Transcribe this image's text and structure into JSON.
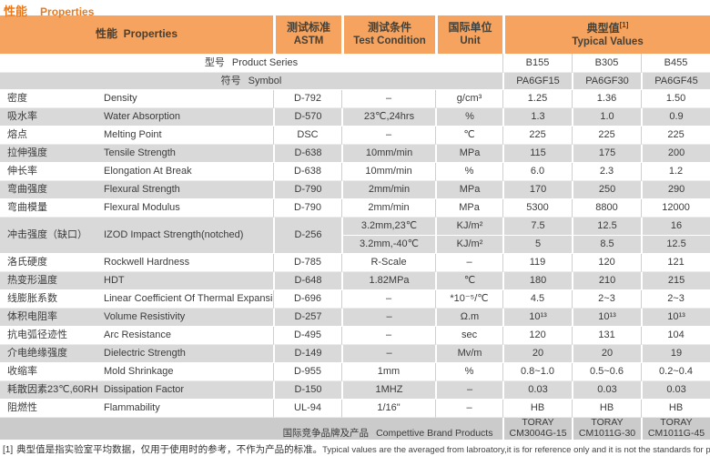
{
  "page": {
    "title_cn": "性能",
    "title_en": "Properties"
  },
  "table": {
    "header": {
      "properties_cn": "性能",
      "properties_en": "Properties",
      "astm_cn": "测试标准",
      "astm_en": "ASTM",
      "condition_cn": "测试条件",
      "condition_en": "Test Condition",
      "unit_cn": "国际单位",
      "unit_en": "Unit",
      "typical_cn": "典型值",
      "typical_sup": "[1]",
      "typical_en": "Typical Values"
    },
    "series_row": {
      "label_cn": "型号",
      "label_en": "Product Series",
      "values": [
        "B155",
        "B305",
        "B455"
      ]
    },
    "symbol_row": {
      "label_cn": "符号",
      "label_en": "Symbol",
      "values": [
        "PA6GF15",
        "PA6GF30",
        "PA6GF45"
      ]
    },
    "rows": [
      {
        "cn": "密度",
        "en": "Density",
        "astm": "D-792",
        "condition": "–",
        "unit": "g/cm³",
        "values": [
          "1.25",
          "1.36",
          "1.50"
        ]
      },
      {
        "cn": "吸水率",
        "en": "Water Absorption",
        "astm": "D-570",
        "condition": "23℃,24hrs",
        "unit": "%",
        "values": [
          "1.3",
          "1.0",
          "0.9"
        ]
      },
      {
        "cn": "熔点",
        "en": "Melting Point",
        "astm": "DSC",
        "condition": "–",
        "unit": "℃",
        "values": [
          "225",
          "225",
          "225"
        ]
      },
      {
        "cn": "拉伸强度",
        "en": "Tensile Strength",
        "astm": "D-638",
        "condition": "10mm/min",
        "unit": "MPa",
        "values": [
          "115",
          "175",
          "200"
        ]
      },
      {
        "cn": "伸长率",
        "en": "Elongation At Break",
        "astm": "D-638",
        "condition": "10mm/min",
        "unit": "%",
        "values": [
          "6.0",
          "2.3",
          "1.2"
        ]
      },
      {
        "cn": "弯曲强度",
        "en": "Flexural Strength",
        "astm": "D-790",
        "condition": "2mm/min",
        "unit": "MPa",
        "values": [
          "170",
          "250",
          "290"
        ]
      },
      {
        "cn": "弯曲模量",
        "en": "Flexural Modulus",
        "astm": "D-790",
        "condition": "2mm/min",
        "unit": "MPa",
        "values": [
          "5300",
          "8800",
          "12000"
        ]
      },
      {
        "cn": "冲击强度（缺口）",
        "en": "IZOD Impact Strength(notched)",
        "astm": "D-256",
        "sub": [
          {
            "condition": "3.2mm,23℃",
            "unit": "KJ/m²",
            "values": [
              "7.5",
              "12.5",
              "16"
            ]
          },
          {
            "condition": "3.2mm,-40℃",
            "unit": "KJ/m²",
            "values": [
              "5",
              "8.5",
              "12.5"
            ]
          }
        ]
      },
      {
        "cn": "洛氏硬度",
        "en": "Rockwell Hardness",
        "astm": "D-785",
        "condition": "R-Scale",
        "unit": "–",
        "values": [
          "119",
          "120",
          "121"
        ]
      },
      {
        "cn": "热变形温度",
        "en": "HDT",
        "astm": "D-648",
        "condition": "1.82MPa",
        "unit": "℃",
        "values": [
          "180",
          "210",
          "215"
        ]
      },
      {
        "cn": "线膨胀系数",
        "en": "Linear Coefficient Of Thermal Expansion",
        "astm": "D-696",
        "condition": "–",
        "unit": "*10⁻⁵/℃",
        "values": [
          "4.5",
          "2~3",
          "2~3"
        ]
      },
      {
        "cn": "体积电阻率",
        "en": "Volume Resistivity",
        "astm": "D-257",
        "condition": "–",
        "unit": "Ω.m",
        "values": [
          "10¹³",
          "10¹³",
          "10¹³"
        ]
      },
      {
        "cn": "抗电弧径迹性",
        "en": "Arc Resistance",
        "astm": "D-495",
        "condition": "–",
        "unit": "sec",
        "values": [
          "120",
          "131",
          "104"
        ]
      },
      {
        "cn": "介电绝缘强度",
        "en": "Dielectric Strength",
        "astm": "D-149",
        "condition": "–",
        "unit": "Mv/m",
        "values": [
          "20",
          "20",
          "19"
        ]
      },
      {
        "cn": "收缩率",
        "en": "Mold Shrinkage",
        "astm": "D-955",
        "condition": "1mm",
        "unit": "%",
        "values": [
          "0.8~1.0",
          "0.5~0.6",
          "0.2~0.4"
        ]
      },
      {
        "cn": "耗散因素23℃,60RH",
        "en": "Dissipation Factor",
        "astm": "D-150",
        "condition": "1MHZ",
        "unit": "–",
        "values": [
          "0.03",
          "0.03",
          "0.03"
        ]
      },
      {
        "cn": "阻燃性",
        "en": "Flammability",
        "astm": "UL-94",
        "condition": "1/16\"",
        "unit": "–",
        "values": [
          "HB",
          "HB",
          "HB"
        ]
      }
    ],
    "brand_row": {
      "label_cn": "国际竞争品牌及产品",
      "label_en": "Compettive Brand Products",
      "values": [
        "TORAY\nCM3004G-15",
        "TORAY\nCM1011G-30",
        "TORAY\nCM1011G-45"
      ]
    }
  },
  "footnote": {
    "marker": "[1]",
    "text_cn": "典型值是指实验室平均数据，仅用于使用时的参考，不作为产品的标准。",
    "text_en": "Typical values are the averaged from labroatory,it is for reference only and it is not the standards for products."
  },
  "colors": {
    "header_orange": "#f5a35e",
    "title_orange": "#e8791d",
    "row_gray": "#d9d9d9",
    "brand_gray": "#cbcbcb"
  }
}
